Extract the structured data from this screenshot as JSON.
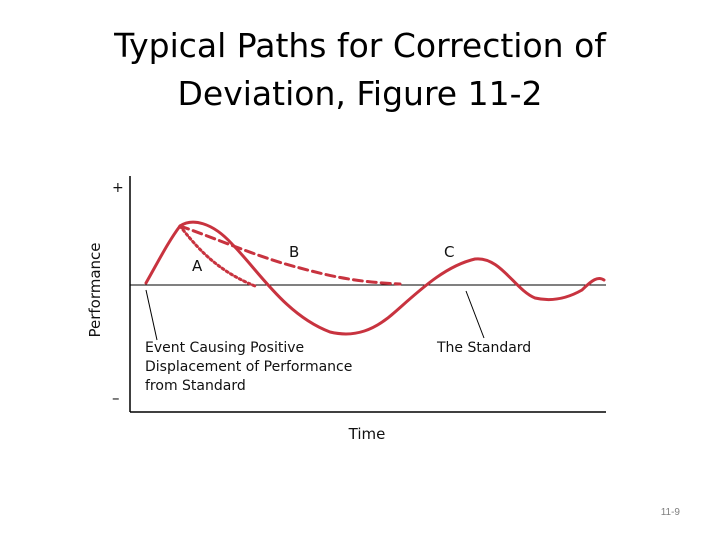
{
  "slide": {
    "title_line1": "Typical Paths for Correction of",
    "title_line2": "Deviation, Figure 11-2",
    "page_number": "11-9"
  },
  "figure": {
    "y_axis_label": "Performance",
    "x_axis_label": "Time",
    "y_plus_label": "+",
    "y_minus_label": "–",
    "path_labels": {
      "a": "A",
      "b": "B",
      "c": "C"
    },
    "annotation_event_line1": "Event Causing Positive",
    "annotation_event_line2": "Displacement of Performance",
    "annotation_event_line3": "from Standard",
    "annotation_standard": "The Standard",
    "colors": {
      "curve": "#c8333f",
      "axis": "#000000",
      "text": "#111111"
    }
  }
}
